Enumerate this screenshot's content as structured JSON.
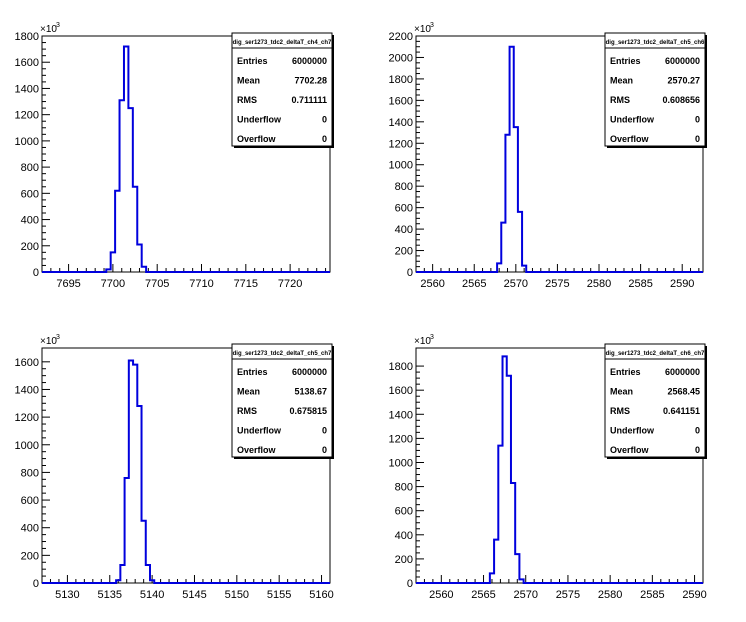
{
  "chart_data": [
    {
      "type": "histogram",
      "title": "dig_ser1273_tdc2_deltaT_ch4_ch7",
      "y_multiplier": "10^3",
      "xlim": [
        7692,
        7724.5
      ],
      "ylim": [
        0,
        1800
      ],
      "x_ticks": [
        7695,
        7700,
        7705,
        7710,
        7715,
        7720
      ],
      "y_ticks": [
        0,
        200,
        400,
        600,
        800,
        1000,
        1200,
        1400,
        1600,
        1800
      ],
      "bins": [
        {
          "x": 7699.5,
          "y": 20
        },
        {
          "x": 7700.0,
          "y": 150
        },
        {
          "x": 7700.5,
          "y": 620
        },
        {
          "x": 7701.0,
          "y": 1310
        },
        {
          "x": 7701.5,
          "y": 1720
        },
        {
          "x": 7702.0,
          "y": 1250
        },
        {
          "x": 7702.5,
          "y": 650
        },
        {
          "x": 7703.0,
          "y": 210
        },
        {
          "x": 7703.5,
          "y": 40
        }
      ],
      "stats": [
        {
          "label": "Entries",
          "value": "6000000"
        },
        {
          "label": "Mean",
          "value": "7702.28"
        },
        {
          "label": "RMS",
          "value": "0.711111"
        },
        {
          "label": "Underflow",
          "value": "0"
        },
        {
          "label": "Overflow",
          "value": "0"
        }
      ]
    },
    {
      "type": "histogram",
      "title": "dig_ser1273_tdc2_deltaT_ch5_ch6",
      "y_multiplier": "10^3",
      "xlim": [
        2558,
        2592.5
      ],
      "ylim": [
        0,
        2200
      ],
      "x_ticks": [
        2560,
        2565,
        2570,
        2575,
        2580,
        2585,
        2590
      ],
      "y_ticks": [
        0,
        200,
        400,
        600,
        800,
        1000,
        1200,
        1400,
        1600,
        1800,
        2000,
        2200
      ],
      "bins": [
        {
          "x": 2568.0,
          "y": 80
        },
        {
          "x": 2568.5,
          "y": 460
        },
        {
          "x": 2569.0,
          "y": 1280
        },
        {
          "x": 2569.5,
          "y": 2100
        },
        {
          "x": 2570.0,
          "y": 1350
        },
        {
          "x": 2570.5,
          "y": 560
        },
        {
          "x": 2571.0,
          "y": 60
        }
      ],
      "stats": [
        {
          "label": "Entries",
          "value": "6000000"
        },
        {
          "label": "Mean",
          "value": "2570.27"
        },
        {
          "label": "RMS",
          "value": "0.608656"
        },
        {
          "label": "Underflow",
          "value": "0"
        },
        {
          "label": "Overflow",
          "value": "0"
        }
      ]
    },
    {
      "type": "histogram",
      "title": "dig_ser1273_tdc2_deltaT_ch5_ch7",
      "y_multiplier": "10^3",
      "xlim": [
        5127,
        5161
      ],
      "ylim": [
        0,
        1700
      ],
      "x_ticks": [
        5130,
        5135,
        5140,
        5145,
        5150,
        5155,
        5160
      ],
      "y_ticks": [
        0,
        200,
        400,
        600,
        800,
        1000,
        1200,
        1400,
        1600
      ],
      "bins": [
        {
          "x": 5136.0,
          "y": 20
        },
        {
          "x": 5136.5,
          "y": 130
        },
        {
          "x": 5137.0,
          "y": 760
        },
        {
          "x": 5137.5,
          "y": 1610
        },
        {
          "x": 5138.0,
          "y": 1580
        },
        {
          "x": 5138.5,
          "y": 1280
        },
        {
          "x": 5139.0,
          "y": 450
        },
        {
          "x": 5139.5,
          "y": 130
        },
        {
          "x": 5140.0,
          "y": 20
        }
      ],
      "stats": [
        {
          "label": "Entries",
          "value": "6000000"
        },
        {
          "label": "Mean",
          "value": "5138.67"
        },
        {
          "label": "RMS",
          "value": "0.675815"
        },
        {
          "label": "Underflow",
          "value": "0"
        },
        {
          "label": "Overflow",
          "value": "0"
        }
      ]
    },
    {
      "type": "histogram",
      "title": "dig_ser1273_tdc2_deltaT_ch6_ch7",
      "y_multiplier": "10^3",
      "xlim": [
        2557,
        2591
      ],
      "ylim": [
        0,
        1950
      ],
      "x_ticks": [
        2560,
        2565,
        2570,
        2575,
        2580,
        2585,
        2590
      ],
      "y_ticks": [
        0,
        200,
        400,
        600,
        800,
        1000,
        1200,
        1400,
        1600,
        1800
      ],
      "bins": [
        {
          "x": 2566.0,
          "y": 80
        },
        {
          "x": 2566.5,
          "y": 360
        },
        {
          "x": 2567.0,
          "y": 1140
        },
        {
          "x": 2567.5,
          "y": 1880
        },
        {
          "x": 2568.0,
          "y": 1720
        },
        {
          "x": 2568.5,
          "y": 830
        },
        {
          "x": 2569.0,
          "y": 240
        },
        {
          "x": 2569.5,
          "y": 30
        }
      ],
      "stats": [
        {
          "label": "Entries",
          "value": "6000000"
        },
        {
          "label": "Mean",
          "value": "2568.45"
        },
        {
          "label": "RMS",
          "value": "0.641151"
        },
        {
          "label": "Underflow",
          "value": "0"
        },
        {
          "label": "Overflow",
          "value": "0"
        }
      ]
    }
  ],
  "colors": {
    "histogram_line": "#0000dd",
    "frame": "#000000",
    "background": "#ffffff"
  }
}
